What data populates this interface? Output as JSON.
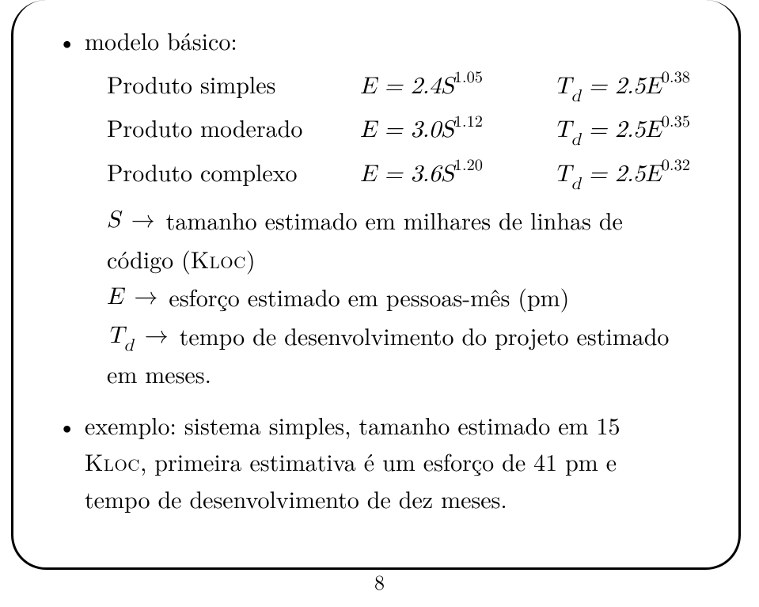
{
  "bullet1": {
    "title": "modelo básico:",
    "rows": [
      {
        "label": "Produto simples",
        "E": "E = 2.4S",
        "Eexp": "1.05",
        "Td": "T",
        "Tdsub": "d",
        "Teq": " = 2.5E",
        "Texp": "0.38"
      },
      {
        "label": "Produto moderado",
        "E": "E = 3.0S",
        "Eexp": "1.12",
        "Td": "T",
        "Tdsub": "d",
        "Teq": " = 2.5E",
        "Texp": "0.35"
      },
      {
        "label": "Produto complexo",
        "E": "E = 3.6S",
        "Eexp": "1.20",
        "Td": "T",
        "Tdsub": "d",
        "Teq": " = 2.5E",
        "Texp": "0.32"
      }
    ],
    "defs": {
      "S": {
        "sym": "S",
        "txt1": "tamanho estimado em milhares de linhas de",
        "txt2": "código (",
        "kloc": "Kloc",
        "txt2b": ")"
      },
      "E": {
        "sym": "E",
        "txt": "esforço estimado em pessoas-mês (pm)"
      },
      "Td": {
        "sym": "T",
        "sub": "d",
        "txt1": "tempo de desenvolvimento do projeto estimado",
        "txt2": "em meses."
      }
    }
  },
  "bullet2": {
    "line1a": "exemplo: sistema simples, tamanho estimado em 15",
    "kloc": "Kloc",
    "line2": ", primeira estimativa é um esforço de 41 pm e",
    "line3": "tempo de desenvolvimento de dez meses."
  },
  "arrow": "→",
  "pagenum": "8"
}
